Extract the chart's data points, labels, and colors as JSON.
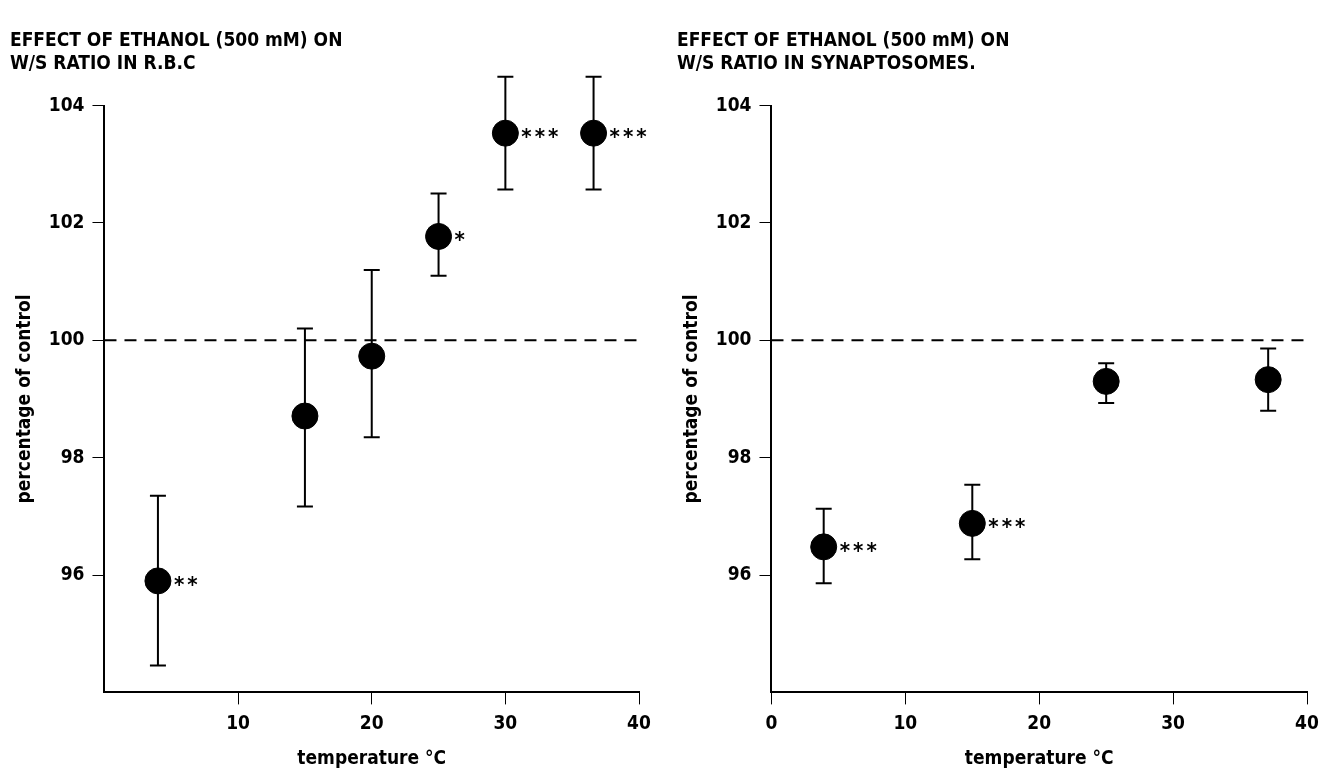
{
  "chart_data": [
    {
      "type": "scatter",
      "title": "EFFECT OF ETHANOL (500 mM) ON\nW/S RATIO IN R.B.C",
      "xlabel": "temperature °C",
      "ylabel": "percentage of control",
      "x": [
        4,
        15,
        20,
        25,
        30,
        36.6
      ],
      "values": [
        95.9,
        98.71,
        99.73,
        101.77,
        103.53,
        103.53
      ],
      "errors": [
        [
          94.46,
          97.35
        ],
        [
          97.17,
          100.2
        ],
        [
          98.35,
          101.2
        ],
        [
          101.1,
          102.5
        ],
        [
          102.57,
          104.49
        ],
        [
          102.57,
          104.49
        ]
      ],
      "color": "#000000",
      "marker": "circle",
      "xlim": [
        0,
        40
      ],
      "xticks": [
        10,
        20,
        30,
        40
      ],
      "ylim": [
        94,
        104
      ],
      "yticks": [
        96,
        98,
        100,
        102,
        104
      ],
      "ref_lines": [
        {
          "axis": "y",
          "value": 100,
          "line_style": "dashed"
        }
      ],
      "annotations": [
        {
          "text": "**",
          "x": 4,
          "y": 95.9
        },
        {
          "text": "*",
          "x": 25,
          "y": 101.77
        },
        {
          "text": "***",
          "x": 30,
          "y": 103.53
        },
        {
          "text": "***",
          "x": 36.6,
          "y": 103.53
        }
      ],
      "grid": false,
      "legend": false
    },
    {
      "type": "scatter",
      "title": "EFFECT OF ETHANOL (500 mM) ON\nW/S RATIO IN SYNAPTOSOMES.",
      "xlabel": "temperature °C",
      "ylabel": "percentage of control",
      "x": [
        3.9,
        15,
        25,
        37.1
      ],
      "values": [
        96.48,
        96.88,
        99.3,
        99.33
      ],
      "errors": [
        [
          95.86,
          97.13
        ],
        [
          96.27,
          97.54
        ],
        [
          98.93,
          99.61
        ],
        [
          98.8,
          99.86
        ]
      ],
      "color": "#000000",
      "marker": "circle",
      "xlim": [
        0,
        40
      ],
      "xticks": [
        0,
        10,
        20,
        30,
        40
      ],
      "ylim": [
        94,
        104
      ],
      "yticks": [
        96,
        98,
        100,
        102,
        104
      ],
      "ref_lines": [
        {
          "axis": "y",
          "value": 100,
          "line_style": "dashed"
        }
      ],
      "annotations": [
        {
          "text": "***",
          "x": 3.9,
          "y": 96.48
        },
        {
          "text": "***",
          "x": 15,
          "y": 96.88
        }
      ],
      "grid": false,
      "legend": false
    }
  ]
}
